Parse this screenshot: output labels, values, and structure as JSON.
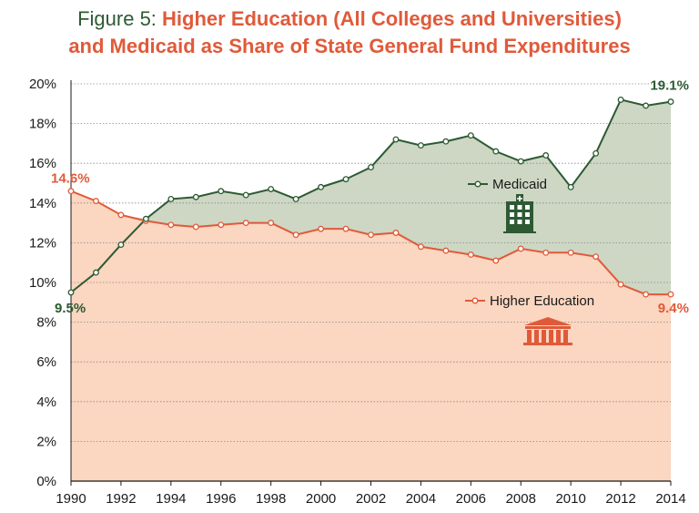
{
  "title": {
    "prefix": "Figure 5: ",
    "line1_bold": "Higher Education (All Colleges and Universities)",
    "line2": "and Medicaid as Share of State General Fund Expenditures"
  },
  "colors": {
    "medicaid": "#2d5a33",
    "medicaid_fill": "#cdd7c4",
    "higher_ed": "#e05a3a",
    "higher_ed_fill": "#fbd6c0",
    "grid": "#8a8a8a"
  },
  "chart_data": {
    "type": "area",
    "x": [
      1990,
      1991,
      1992,
      1993,
      1994,
      1995,
      1996,
      1997,
      1998,
      1999,
      2000,
      2001,
      2002,
      2003,
      2004,
      2005,
      2006,
      2007,
      2008,
      2009,
      2010,
      2011,
      2012,
      2013,
      2014
    ],
    "x_tick_labels": [
      "1990",
      "1992",
      "1994",
      "1996",
      "1998",
      "2000",
      "2002",
      "2004",
      "2006",
      "2008",
      "2010",
      "2012",
      "2014"
    ],
    "y_tick_labels": [
      "0%",
      "2%",
      "4%",
      "6%",
      "8%",
      "10%",
      "12%",
      "14%",
      "16%",
      "18%",
      "20%"
    ],
    "ylim": [
      0,
      20
    ],
    "xlim": [
      1990,
      2014
    ],
    "grid": "horizontal",
    "series": [
      {
        "name": "Medicaid",
        "icon": "hospital-icon",
        "values": [
          9.5,
          10.5,
          11.9,
          13.2,
          14.2,
          14.3,
          14.6,
          14.4,
          14.7,
          14.2,
          14.8,
          15.2,
          15.8,
          17.2,
          16.9,
          17.1,
          17.4,
          16.6,
          16.1,
          16.4,
          14.8,
          16.5,
          19.2,
          18.9,
          19.1
        ]
      },
      {
        "name": "Higher Education",
        "icon": "university-icon",
        "values": [
          14.6,
          14.1,
          13.4,
          13.1,
          12.9,
          12.8,
          12.9,
          13.0,
          13.0,
          12.4,
          12.7,
          12.7,
          12.4,
          12.5,
          11.8,
          11.6,
          11.4,
          11.1,
          11.7,
          11.5,
          11.5,
          11.3,
          9.9,
          9.4,
          9.4
        ]
      }
    ],
    "annotations": [
      {
        "text": "14.6%",
        "series": "Higher Education",
        "x": 1990
      },
      {
        "text": "9.5%",
        "series": "Medicaid",
        "x": 1990
      },
      {
        "text": "19.1%",
        "series": "Medicaid",
        "x": 2014
      },
      {
        "text": "9.4%",
        "series": "Higher Education",
        "x": 2014
      }
    ],
    "legend_labels": {
      "medicaid": "Medicaid",
      "higher_ed": "Higher Education"
    }
  }
}
